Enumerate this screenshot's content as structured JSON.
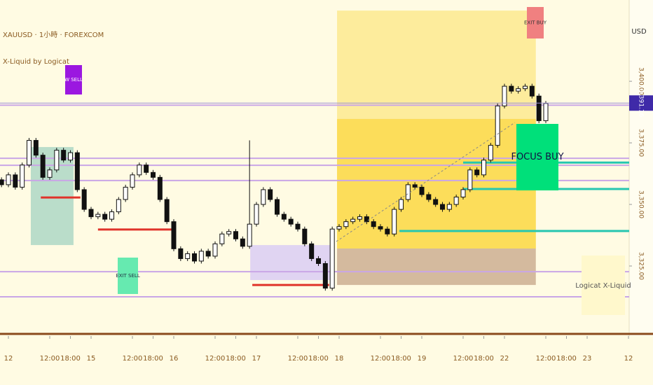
{
  "chart_data": {
    "type": "candlestick",
    "symbol": "XAUUSD · 1小時 · FOREXCOM",
    "indicator": "X-Liquid by Logicat",
    "currency": "USD",
    "watermark": "Logicat X-Liquid",
    "x": [
      -2,
      0,
      2,
      4,
      6,
      8,
      10,
      12,
      14,
      16,
      18,
      20,
      22,
      24,
      26,
      28,
      30,
      32,
      34,
      36,
      38,
      40,
      42,
      44,
      46,
      48,
      50,
      52,
      54,
      56,
      58,
      60,
      62,
      64,
      66,
      68,
      70,
      72,
      74,
      76,
      78,
      80,
      82,
      84,
      86,
      88,
      90,
      92,
      94,
      96,
      98,
      100,
      102,
      104,
      106,
      108,
      110,
      112,
      114,
      116,
      118,
      120,
      122,
      124,
      126,
      128,
      130,
      132,
      134,
      136,
      138,
      140,
      142,
      144,
      146,
      148,
      150,
      152,
      154,
      156
    ],
    "open": [
      3360,
      3358,
      3362,
      3357,
      3366,
      3376,
      3370,
      3361,
      3364,
      3372,
      3368,
      3371,
      3356,
      3348,
      3345,
      3346,
      3344,
      3347,
      3352,
      3357,
      3362,
      3366,
      3363,
      3361,
      3352,
      3343,
      3332,
      3328,
      3330,
      3327,
      3331,
      3329,
      3334,
      3338,
      3339,
      3336,
      3333,
      3342,
      3350,
      3356,
      3352,
      3346,
      3344,
      3342,
      3340,
      3334,
      3328,
      3326,
      3316,
      3340,
      3341,
      3343,
      3344,
      3345,
      3343,
      3341,
      3340,
      3338,
      3348,
      3352,
      3358,
      3357,
      3354,
      3352,
      3350,
      3348,
      3350,
      3353,
      3356,
      3364,
      3362,
      3368,
      3374,
      3390,
      3398,
      3396,
      3397,
      3398,
      3394,
      3384
    ],
    "high": [
      3361,
      3363,
      3363,
      3367,
      3377,
      3377,
      3371,
      3365,
      3373,
      3373,
      3372,
      3372,
      3357,
      3349,
      3347,
      3347,
      3348,
      3353,
      3358,
      3363,
      3367,
      3367,
      3364,
      3362,
      3353,
      3344,
      3333,
      3331,
      3331,
      3332,
      3332,
      3335,
      3339,
      3340,
      3340,
      3337,
      3376,
      3351,
      3357,
      3357,
      3353,
      3347,
      3345,
      3343,
      3341,
      3335,
      3329,
      3327,
      3341,
      3342,
      3344,
      3345,
      3346,
      3346,
      3344,
      3342,
      3341,
      3349,
      3353,
      3359,
      3359,
      3358,
      3355,
      3353,
      3351,
      3351,
      3354,
      3357,
      3365,
      3365,
      3369,
      3375,
      3391,
      3399,
      3399,
      3398,
      3399,
      3399,
      3395,
      3392
    ],
    "low": [
      3357,
      3357,
      3356,
      3356,
      3365,
      3369,
      3360,
      3360,
      3363,
      3367,
      3367,
      3355,
      3347,
      3344,
      3344,
      3343,
      3343,
      3346,
      3351,
      3356,
      3361,
      3362,
      3360,
      3351,
      3342,
      3331,
      3327,
      3327,
      3326,
      3326,
      3328,
      3328,
      3333,
      3337,
      3335,
      3332,
      3332,
      3341,
      3349,
      3351,
      3345,
      3343,
      3341,
      3339,
      3333,
      3327,
      3325,
      3315,
      3315,
      3339,
      3340,
      3342,
      3343,
      3342,
      3340,
      3339,
      3337,
      3337,
      3347,
      3351,
      3356,
      3353,
      3351,
      3349,
      3347,
      3347,
      3349,
      3352,
      3355,
      3361,
      3361,
      3367,
      3373,
      3389,
      3395,
      3395,
      3396,
      3393,
      3383,
      3383
    ],
    "close": [
      3358,
      3362,
      3357,
      3366,
      3376,
      3370,
      3361,
      3364,
      3372,
      3368,
      3371,
      3356,
      3348,
      3345,
      3346,
      3344,
      3347,
      3352,
      3357,
      3362,
      3366,
      3363,
      3361,
      3352,
      3343,
      3332,
      3328,
      3330,
      3327,
      3331,
      3329,
      3334,
      3338,
      3339,
      3336,
      3333,
      3342,
      3350,
      3356,
      3352,
      3346,
      3344,
      3342,
      3340,
      3334,
      3328,
      3326,
      3316,
      3340,
      3341,
      3343,
      3344,
      3345,
      3343,
      3341,
      3340,
      3338,
      3348,
      3352,
      3358,
      3357,
      3354,
      3352,
      3350,
      3348,
      3350,
      3353,
      3356,
      3364,
      3362,
      3368,
      3374,
      3390,
      3398,
      3396,
      3397,
      3398,
      3394,
      3384,
      3391
    ],
    "up_color": "#ffffff",
    "down_color": "#111111",
    "xlim": [
      -2.44,
      180.2
    ],
    "ylim": [
      3298,
      3433
    ],
    "xticks": [
      {
        "value": 0,
        "label": "12"
      },
      {
        "value": 12,
        "label": "12:00"
      },
      {
        "value": 18,
        "label": "18:00"
      },
      {
        "value": 24,
        "label": "15"
      },
      {
        "value": 36,
        "label": "12:00"
      },
      {
        "value": 42,
        "label": "18:00"
      },
      {
        "value": 48,
        "label": "16"
      },
      {
        "value": 60,
        "label": "12:00"
      },
      {
        "value": 66,
        "label": "18:00"
      },
      {
        "value": 72,
        "label": "17"
      },
      {
        "value": 84,
        "label": "12:00"
      },
      {
        "value": 90,
        "label": "18:00"
      },
      {
        "value": 96,
        "label": "18"
      },
      {
        "value": 108,
        "label": "12:00"
      },
      {
        "value": 114,
        "label": "18:00"
      },
      {
        "value": 120,
        "label": "19"
      },
      {
        "value": 132,
        "label": "12:00"
      },
      {
        "value": 138,
        "label": "18:00"
      },
      {
        "value": 144,
        "label": "22"
      },
      {
        "value": 156,
        "label": "12:00"
      },
      {
        "value": 162,
        "label": "18:00"
      },
      {
        "value": 168,
        "label": "23"
      },
      {
        "value": 180,
        "label": "12"
      }
    ],
    "yticks": [
      {
        "value": 3400,
        "label": "3,400.00"
      },
      {
        "value": 3375,
        "label": "3,375.00"
      },
      {
        "value": 3350,
        "label": "3,350.00"
      },
      {
        "value": 3325,
        "label": "3,325.00"
      }
    ],
    "last_price": {
      "value": 3391.16,
      "label": "3,391.16"
    },
    "zones": [
      {
        "x": [
          95.4,
          153.1
        ],
        "y": [
          3332.1,
          3428.7
        ],
        "color": "#fde98a"
      },
      {
        "x": [
          95.4,
          153.1
        ],
        "y": [
          3332.1,
          3384.7
        ],
        "color": "#fbd94a"
      },
      {
        "x": [
          95.4,
          153.1
        ],
        "y": [
          3317.3,
          3332.1
        ],
        "color": "#c9aa8c"
      },
      {
        "x": [
          6.5,
          18.9
        ],
        "y": [
          3333.5,
          3373.3
        ],
        "color": "#a9d6c3"
      },
      {
        "x": [
          70.2,
          94.2
        ],
        "y": [
          3319.3,
          3333.5
        ],
        "color": "#d8cbf5"
      }
    ],
    "levels": [
      3390.3,
      3368.75,
      3365.9,
      3359.7,
      3322.7,
      3312.5
    ],
    "level_color": "#c9a6e6",
    "teal_lines": [
      {
        "x": 132,
        "y": 3367
      },
      {
        "x": 132,
        "y": 3356.25
      },
      {
        "x": 113.5,
        "y": 3339.2
      }
    ],
    "teal_color": "#26c6b0",
    "red_lines": [
      {
        "x": [
          9.4,
          20.9
        ],
        "y": 3352.8
      },
      {
        "x": [
          26,
          48.4
        ],
        "y": 3339.8
      },
      {
        "x": [
          70.8,
          93.1
        ],
        "y": 3317.3
      }
    ],
    "red_color": "#e0332a",
    "annotations": [
      "FOCUS BUY",
      "EXIT BUY",
      "EXIT SELL",
      "W SELL"
    ]
  }
}
